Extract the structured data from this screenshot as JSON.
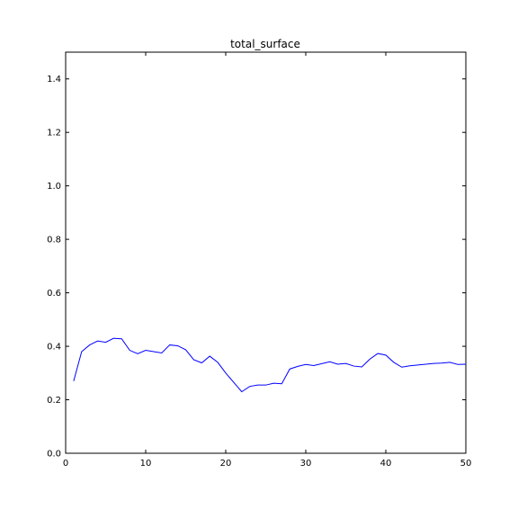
{
  "chart_data": {
    "type": "line",
    "title": "total_surface",
    "xlabel": "",
    "ylabel": "",
    "xlim": [
      0,
      50
    ],
    "ylim": [
      0.0,
      1.5
    ],
    "xticks": [
      0,
      10,
      20,
      30,
      40,
      50
    ],
    "xtick_labels": [
      "0",
      "10",
      "20",
      "30",
      "40",
      "50"
    ],
    "yticks": [
      0.0,
      0.2,
      0.4,
      0.6,
      0.8,
      1.0,
      1.2,
      1.4
    ],
    "ytick_labels": [
      "0.0",
      "0.2",
      "0.4",
      "0.6",
      "0.8",
      "1.0",
      "1.2",
      "1.4"
    ],
    "grid": false,
    "line_color": "#0000ff",
    "series": [
      {
        "x": [
          1,
          2,
          3,
          4,
          5,
          6,
          7,
          8,
          9,
          10,
          11,
          12,
          13,
          14,
          15,
          16,
          17,
          18,
          19,
          20,
          21,
          22,
          23,
          24,
          25,
          26,
          27,
          28,
          29,
          30,
          31,
          32,
          33,
          34,
          35,
          36,
          37,
          38,
          39,
          40,
          41,
          42,
          43,
          44,
          45,
          46,
          47,
          48,
          49,
          50
        ],
        "values": [
          0.27,
          0.38,
          0.405,
          0.42,
          0.415,
          0.43,
          0.428,
          0.385,
          0.372,
          0.385,
          0.38,
          0.375,
          0.405,
          0.402,
          0.387,
          0.35,
          0.338,
          0.363,
          0.34,
          0.3,
          0.265,
          0.23,
          0.25,
          0.255,
          0.255,
          0.262,
          0.26,
          0.315,
          0.325,
          0.332,
          0.328,
          0.335,
          0.342,
          0.333,
          0.336,
          0.326,
          0.323,
          0.352,
          0.373,
          0.367,
          0.34,
          0.322,
          0.327,
          0.33,
          0.333,
          0.336,
          0.337,
          0.34,
          0.332,
          0.333
        ]
      }
    ]
  }
}
